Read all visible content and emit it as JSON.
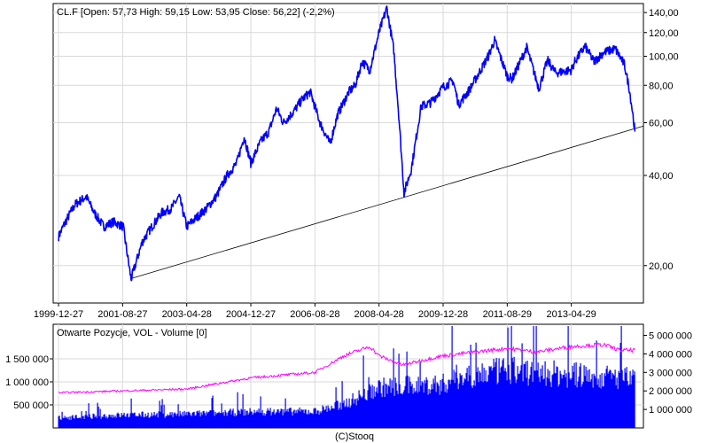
{
  "chart_data": [
    {
      "type": "line",
      "title": "CL.F [Open: 57,73  High: 59,15  Low: 53,95  Close: 56,22] (-2,2%)",
      "yscale": "log",
      "ylim": [
        15,
        150
      ],
      "grid": true,
      "x_tick_labels": [
        "1999-12-27",
        "2001-08-27",
        "2003-04-28",
        "2004-12-27",
        "2006-08-28",
        "2008-04-28",
        "2009-12-28",
        "2011-08-29",
        "2013-04-29"
      ],
      "y_tick_labels": [
        "140,00",
        "120,00",
        "100,00",
        "80,00",
        "60,00",
        "40,00",
        "20,00"
      ],
      "y_ticks": [
        140,
        120,
        100,
        80,
        60,
        40,
        20
      ],
      "series": [
        {
          "color": "#0000ff",
          "x": [
            "1999-12-27",
            "2000-03-01",
            "2000-06-01",
            "2000-09-15",
            "2000-12-01",
            "2001-03-01",
            "2001-06-01",
            "2001-09-01",
            "2001-11-15",
            "2002-03-01",
            "2002-06-01",
            "2002-09-01",
            "2002-12-01",
            "2003-02-15",
            "2003-04-28",
            "2003-08-01",
            "2003-11-01",
            "2004-02-01",
            "2004-05-15",
            "2004-08-15",
            "2004-10-25",
            "2004-12-27",
            "2005-04-01",
            "2005-06-15",
            "2005-08-29",
            "2005-11-01",
            "2006-02-01",
            "2006-05-01",
            "2006-07-15",
            "2006-10-15",
            "2007-01-18",
            "2007-04-01",
            "2007-07-15",
            "2007-09-15",
            "2007-11-20",
            "2008-02-01",
            "2008-04-28",
            "2008-07-11",
            "2008-09-15",
            "2008-11-01",
            "2008-12-22",
            "2009-03-01",
            "2009-06-01",
            "2009-09-01",
            "2009-12-28",
            "2010-04-01",
            "2010-05-25",
            "2010-09-01",
            "2010-12-28",
            "2011-03-01",
            "2011-05-01",
            "2011-08-29",
            "2011-10-15",
            "2012-03-01",
            "2012-06-25",
            "2012-09-15",
            "2012-12-01",
            "2013-04-29",
            "2013-06-01",
            "2013-09-06",
            "2013-12-01",
            "2014-03-01",
            "2014-06-20",
            "2014-09-15",
            "2014-11-01",
            "2014-12-10",
            "2014-12-24"
          ],
          "y": [
            25,
            28,
            32,
            34,
            30,
            27,
            28,
            27,
            18,
            24,
            27,
            30,
            31,
            34,
            27,
            29,
            31,
            34,
            40,
            44,
            54,
            44,
            52,
            56,
            67,
            60,
            65,
            72,
            76,
            60,
            51,
            64,
            76,
            80,
            96,
            90,
            120,
            145,
            105,
            64,
            35,
            42,
            68,
            70,
            79,
            83,
            69,
            77,
            91,
            100,
            113,
            86,
            84,
            107,
            78,
            97,
            88,
            90,
            96,
            108,
            96,
            103,
            106,
            94,
            78,
            62,
            56
          ]
        }
      ]
    },
    {
      "type": "area",
      "title": "Otwarte Pozycje, VOL - Volume [0]",
      "left_ticks": [
        500000,
        1000000,
        1500000
      ],
      "left_tick_labels": [
        "500 000",
        "1 000 000",
        "1 500 000"
      ],
      "right_ticks": [
        1000000,
        2000000,
        3000000,
        4000000,
        5000000
      ],
      "right_tick_labels": [
        "1 000 000",
        "2 000 000",
        "3 000 000",
        "4 000 000",
        "5 000 000"
      ],
      "series": [
        {
          "color": "#0000ff",
          "x": [
            "1999-12-27",
            "2001-08-27",
            "2003-04-28",
            "2004-12-27",
            "2006-08-28",
            "2007-06-01",
            "2008-04-28",
            "2009-12-28",
            "2010-05-01",
            "2011-08-29",
            "2013-04-29",
            "2014-06-01",
            "2014-12-24"
          ],
          "y": [
            220000,
            280000,
            300000,
            350000,
            360000,
            520000,
            880000,
            950000,
            1100000,
            1250000,
            1150000,
            1100000,
            1050000
          ]
        },
        {
          "color": "#ff00ff",
          "x": [
            "1999-12-27",
            "2001-08-27",
            "2003-04-28",
            "2004-06-01",
            "2004-12-27",
            "2006-08-28",
            "2007-06-01",
            "2008-02-01",
            "2008-04-28",
            "2008-12-01",
            "2009-12-28",
            "2011-08-29",
            "2012-06-01",
            "2013-04-29",
            "2014-03-01",
            "2014-08-01",
            "2014-12-24"
          ],
          "y": [
            1900000,
            2000000,
            2100000,
            2500000,
            2700000,
            3000000,
            3900000,
            4400000,
            3900000,
            3400000,
            3900000,
            4300000,
            4100000,
            4400000,
            4500000,
            4200000,
            4200000
          ]
        }
      ]
    }
  ],
  "footer": {
    "credit": "(C)Stooq"
  }
}
